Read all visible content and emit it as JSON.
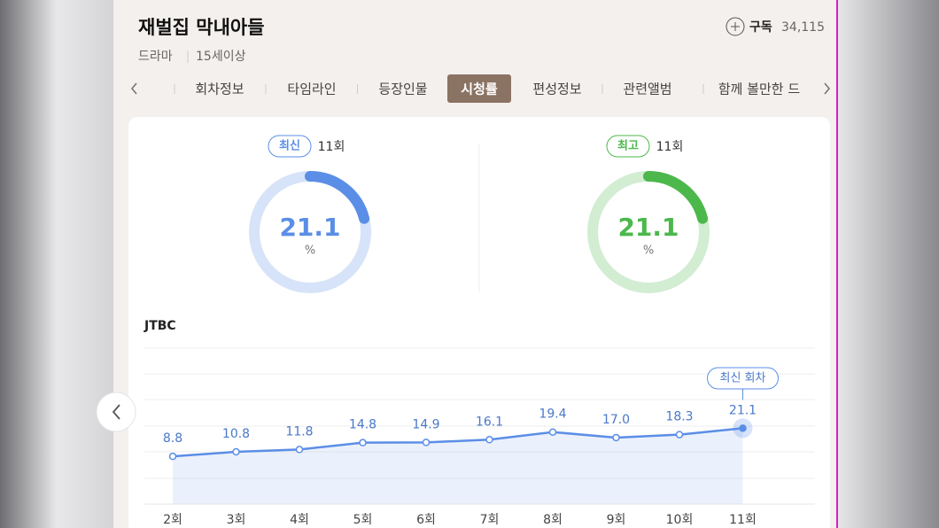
{
  "header": {
    "title": "재벌집 막내아들",
    "genre": "드라마",
    "rating": "15세이상",
    "subscribe": "구독",
    "subscribers": "34,115"
  },
  "tabs": [
    "회차정보",
    "타임라인",
    "등장인물",
    "시청률",
    "편성정보",
    "관련앨범",
    "함께 볼만한 드"
  ],
  "cards": [
    {
      "badge": "최신",
      "episode": "11회",
      "value": 21.1,
      "unit": "%",
      "color": "#5b8ee6"
    },
    {
      "badge": "최고",
      "episode": "11회",
      "value": 21.1,
      "unit": "%",
      "color": "#4cb84c"
    }
  ],
  "chart_data": {
    "type": "line",
    "title": "JTBC",
    "categories": [
      "2회",
      "3회",
      "4회",
      "5회",
      "6회",
      "7회",
      "8회",
      "9회",
      "10회",
      "11회"
    ],
    "values": [
      8.8,
      10.8,
      11.8,
      14.8,
      14.9,
      16.1,
      19.4,
      17.0,
      18.3,
      21.1
    ],
    "value_labels": [
      "8.8",
      "10.8",
      "11.8",
      "14.8",
      "14.9",
      "16.1",
      "19.4",
      "17.0",
      "18.3",
      "21.1"
    ],
    "color": "#5b8ee6",
    "ylim": [
      -12,
      56
    ],
    "annotation": "최신 회차"
  }
}
